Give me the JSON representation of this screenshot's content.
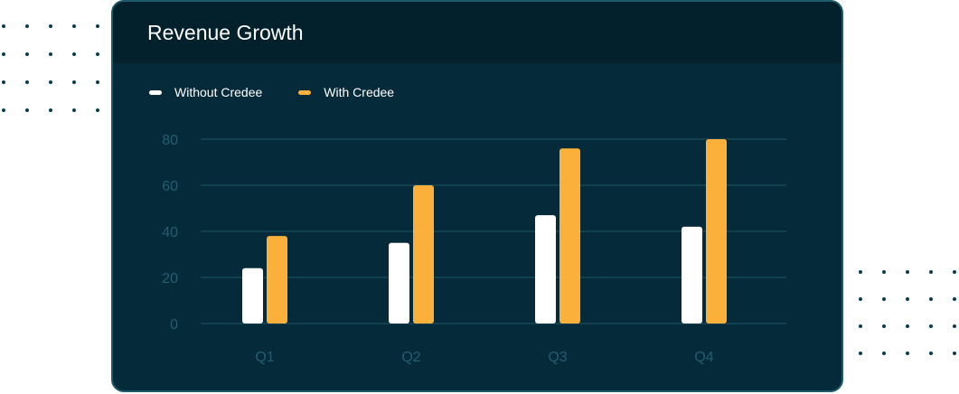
{
  "card": {
    "title": "Revenue Growth"
  },
  "legend": [
    {
      "label": "Without Credee",
      "color": "#ffffff"
    },
    {
      "label": "With Credee",
      "color": "#fbb03b"
    }
  ],
  "colors": {
    "gridline": "#1d5466",
    "axis_text": "#235d70",
    "card_bg": "#052b3b",
    "header_bg": "#02212d"
  },
  "chart_data": {
    "type": "bar",
    "title": "Revenue Growth",
    "categories": [
      "Q1",
      "Q2",
      "Q3",
      "Q4"
    ],
    "series": [
      {
        "name": "Without Credee",
        "values": [
          24,
          35,
          47,
          42
        ],
        "color": "#ffffff"
      },
      {
        "name": "With Credee",
        "values": [
          38,
          60,
          76,
          80
        ],
        "color": "#fbb03b"
      }
    ],
    "yticks": [
      0,
      20,
      40,
      60,
      80
    ],
    "ylim": [
      0,
      80
    ],
    "xlabel": "",
    "ylabel": "",
    "grid": true,
    "legend_position": "top-left"
  }
}
